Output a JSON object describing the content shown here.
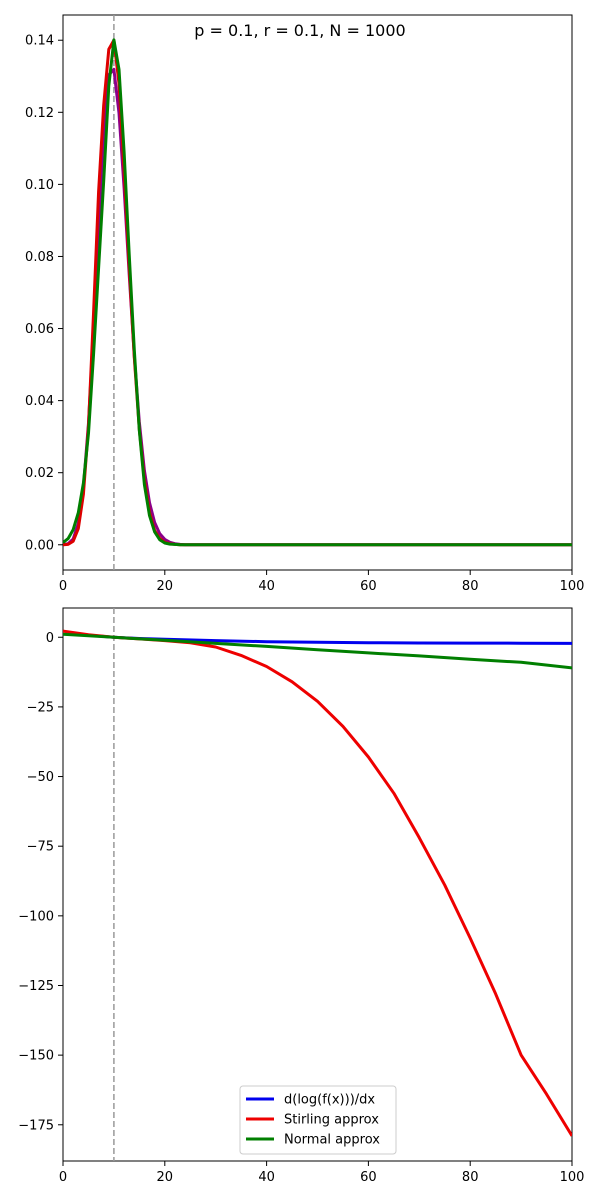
{
  "chart_data": [
    {
      "type": "line",
      "title": "p = 0.1, r = 0.1, N = 1000",
      "xlim": [
        0,
        100
      ],
      "ylim": [
        -0.007,
        0.147
      ],
      "xticks": [
        0,
        20,
        40,
        60,
        80,
        100
      ],
      "xtick_labels": [
        "0",
        "20",
        "40",
        "60",
        "80",
        "100"
      ],
      "yticks": [
        0.0,
        0.02,
        0.04,
        0.06,
        0.08,
        0.1,
        0.12,
        0.14
      ],
      "ytick_labels": [
        "0.00",
        "0.02",
        "0.04",
        "0.06",
        "0.08",
        "0.10",
        "0.12",
        "0.14"
      ],
      "vline": {
        "x": 10,
        "color": "#999999",
        "style": "dashed"
      },
      "grid": false,
      "series": [
        {
          "color": "#8b008b",
          "x": [
            0,
            1,
            2,
            3,
            4,
            5,
            6,
            7,
            8,
            9,
            10,
            11,
            12,
            13,
            14,
            15,
            16,
            17,
            18,
            19,
            20,
            21,
            22,
            23,
            24,
            25,
            26,
            27,
            28,
            29,
            30,
            35,
            40,
            45,
            50,
            55,
            60,
            65,
            70,
            75,
            80,
            85,
            90,
            95,
            100
          ],
          "values": [
            0.0,
            0.0003,
            0.0016,
            0.0059,
            0.0159,
            0.0338,
            0.0596,
            0.0889,
            0.1148,
            0.1304,
            0.1319,
            0.1198,
            0.099,
            0.075,
            0.0524,
            0.0341,
            0.0206,
            0.0117,
            0.0062,
            0.0031,
            0.0015,
            0.0007,
            0.0003,
            0.0001,
            0.0,
            0.0,
            0.0,
            0.0,
            0.0,
            0.0,
            0.0,
            0.0,
            0.0,
            0.0,
            0.0,
            0.0,
            0.0,
            0.0,
            0.0,
            0.0,
            0.0,
            0.0,
            0.0,
            0.0,
            0.0
          ]
        },
        {
          "color": "#dd0000",
          "x": [
            0,
            1,
            2,
            3,
            4,
            5,
            6,
            7,
            8,
            9,
            10,
            11,
            12,
            13,
            14,
            15,
            16,
            17,
            18,
            19,
            20,
            21,
            22,
            23,
            24,
            25,
            26,
            27,
            28,
            29,
            30,
            35,
            40,
            45,
            50,
            55,
            60,
            65,
            70,
            75,
            80,
            85,
            90,
            95,
            100
          ],
          "values": [
            0.0,
            0.0001,
            0.001,
            0.0045,
            0.014,
            0.033,
            0.064,
            0.098,
            0.122,
            0.1375,
            0.14,
            0.128,
            0.104,
            0.077,
            0.052,
            0.032,
            0.018,
            0.009,
            0.004,
            0.0018,
            0.0007,
            0.0003,
            0.0001,
            0.0,
            0.0,
            0.0,
            0.0,
            0.0,
            0.0,
            0.0,
            0.0,
            0.0,
            0.0,
            0.0,
            0.0,
            0.0,
            0.0,
            0.0,
            0.0,
            0.0,
            0.0,
            0.0,
            0.0,
            0.0,
            0.0
          ]
        },
        {
          "color": "#007f00",
          "x": [
            0,
            1,
            2,
            3,
            4,
            5,
            6,
            7,
            8,
            9,
            10,
            11,
            12,
            13,
            14,
            15,
            16,
            17,
            18,
            19,
            20,
            21,
            22,
            23,
            24,
            25,
            26,
            27,
            28,
            29,
            30,
            35,
            40,
            45,
            50,
            55,
            60,
            65,
            70,
            75,
            80,
            85,
            90,
            95,
            100
          ],
          "values": [
            0.0006,
            0.0017,
            0.0042,
            0.0089,
            0.0171,
            0.031,
            0.0526,
            0.0768,
            0.101,
            0.1273,
            0.1401,
            0.1319,
            0.109,
            0.0806,
            0.0541,
            0.0318,
            0.0167,
            0.0081,
            0.0036,
            0.0014,
            0.0005,
            0.0002,
            0.0001,
            0.0,
            0.0,
            0.0,
            0.0,
            0.0,
            0.0,
            0.0,
            0.0,
            0.0,
            0.0,
            0.0,
            0.0,
            0.0,
            0.0,
            0.0,
            0.0,
            0.0,
            0.0,
            0.0,
            0.0,
            0.0,
            0.0
          ]
        }
      ]
    },
    {
      "type": "line",
      "xlim": [
        0,
        100
      ],
      "ylim": [
        -188,
        10.5
      ],
      "xticks": [
        0,
        20,
        40,
        60,
        80,
        100
      ],
      "xtick_labels": [
        "0",
        "20",
        "40",
        "60",
        "80",
        "100"
      ],
      "yticks": [
        0,
        -25,
        -50,
        -75,
        -100,
        -125,
        -150,
        -175
      ],
      "ytick_labels": [
        "0",
        "−25",
        "−50",
        "−75",
        "−100",
        "−125",
        "−150",
        "−175"
      ],
      "vline": {
        "x": 10,
        "color": "#999999",
        "style": "dashed"
      },
      "grid": false,
      "legend": "lower-center",
      "series": [
        {
          "name": "d(log(f(x)))/dx",
          "color": "#0000ee",
          "x": [
            1,
            5,
            10,
            15,
            20,
            30,
            40,
            50,
            60,
            70,
            80,
            90,
            100
          ],
          "values": [
            1.6,
            0.7,
            0.0,
            -0.45,
            -0.75,
            -1.2,
            -1.6,
            -1.8,
            -1.95,
            -2.05,
            -2.1,
            -2.15,
            -2.2
          ]
        },
        {
          "name": "Stirling approx",
          "color": "#ee0000",
          "x": [
            0,
            5,
            10,
            15,
            20,
            25,
            30,
            35,
            40,
            45,
            50,
            55,
            60,
            65,
            70,
            75,
            80,
            85,
            90,
            95,
            100
          ],
          "values": [
            2.2,
            0.9,
            0.0,
            -0.6,
            -1.2,
            -2.0,
            -3.5,
            -6.5,
            -10.5,
            -16,
            -23,
            -32,
            -43,
            -56,
            -72,
            -89,
            -108,
            -128,
            -150,
            -164,
            -179
          ]
        },
        {
          "name": "Normal approx",
          "color": "#007f00",
          "x": [
            0,
            10,
            20,
            30,
            40,
            50,
            60,
            70,
            80,
            90,
            100
          ],
          "values": [
            1.1,
            0.0,
            -1.1,
            -2.2,
            -3.3,
            -4.5,
            -5.6,
            -6.7,
            -7.9,
            -9.0,
            -11.0
          ]
        }
      ]
    }
  ]
}
